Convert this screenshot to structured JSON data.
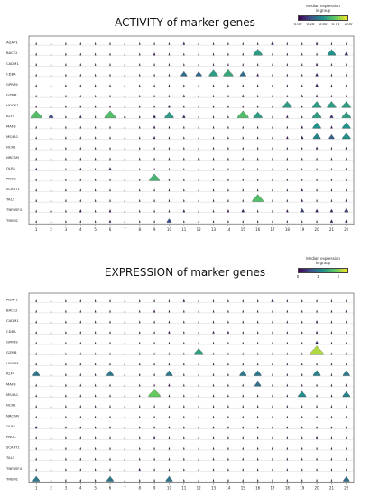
{
  "colors": {
    "viridis": [
      "#440154",
      "#3b528b",
      "#21918c",
      "#5ec962",
      "#fde725"
    ],
    "grid": "#bbbbbb",
    "frame": "#444444",
    "violin_edge": "#333333"
  },
  "chart_data": [
    {
      "type": "violin",
      "title": "ACTIVITY of marker genes",
      "colorbar": {
        "title_line1": "Median expression",
        "title_line2": "in group",
        "ticks": [
          "0.00",
          "0.25",
          "0.50",
          "0.75",
          "1.00"
        ],
        "range": [
          0,
          1
        ]
      },
      "genes": [
        "AGAP1",
        "BACE2",
        "CADM1",
        "CD8A",
        "GPR39",
        "GZMB",
        "HOOK1",
        "KLF4",
        "MAFB",
        "MS4A1",
        "NCR1",
        "NRCAM",
        "OLR1",
        "PNOC",
        "SCART1",
        "TAL1",
        "TNFRSF4",
        "TREM1"
      ],
      "groups": [
        "1",
        "2",
        "3",
        "4",
        "5",
        "6",
        "7",
        "8",
        "9",
        "10",
        "11",
        "12",
        "13",
        "14",
        "15",
        "16",
        "17",
        "18",
        "19",
        "20",
        "21",
        "22"
      ],
      "matrix": [
        [
          0,
          0,
          0,
          0,
          0,
          0,
          0,
          0,
          0,
          0,
          0.05,
          0,
          0,
          0,
          0,
          0,
          0.1,
          0,
          0,
          0.05,
          0,
          0
        ],
        [
          0,
          0,
          0,
          0,
          0,
          0,
          0,
          0,
          0.05,
          0,
          0,
          0,
          0,
          0,
          0,
          0.55,
          0,
          0,
          0,
          0,
          0.5,
          0.15
        ],
        [
          0,
          0,
          0,
          0,
          0,
          0,
          0,
          0,
          0,
          0,
          0,
          0,
          0,
          0,
          0,
          0,
          0,
          0,
          0,
          0.05,
          0,
          0
        ],
        [
          0,
          0,
          0,
          0,
          0,
          0,
          0,
          0,
          0,
          0,
          0.35,
          0.35,
          0.55,
          0.6,
          0.35,
          0.05,
          0,
          0,
          0,
          0.1,
          0,
          0
        ],
        [
          0,
          0,
          0,
          0,
          0,
          0,
          0,
          0,
          0,
          0,
          0,
          0,
          0,
          0,
          0,
          0,
          0,
          0,
          0,
          0.1,
          0,
          0
        ],
        [
          0,
          0,
          0,
          0,
          0,
          0,
          0,
          0,
          0,
          0,
          0.05,
          0,
          0,
          0,
          0.05,
          0,
          0,
          0,
          0.05,
          0.05,
          0,
          0
        ],
        [
          0,
          0,
          0,
          0,
          0,
          0,
          0,
          0,
          0,
          0.05,
          0,
          0,
          0,
          0,
          0,
          0,
          0,
          0.55,
          0,
          0.55,
          0.55,
          0.55
        ],
        [
          0.7,
          0.25,
          0,
          0.05,
          0,
          0.7,
          0.05,
          0,
          0.1,
          0.55,
          0.1,
          0,
          0,
          0,
          0.7,
          0.55,
          0,
          0.05,
          0,
          0.55,
          0.15,
          0.55
        ],
        [
          0,
          0,
          0,
          0,
          0,
          0,
          0,
          0,
          0.05,
          0,
          0,
          0,
          0,
          0,
          0,
          0,
          0,
          0,
          0.05,
          0.5,
          0.05,
          0.5
        ],
        [
          0,
          0,
          0,
          0,
          0,
          0,
          0,
          0,
          0.05,
          0,
          0,
          0,
          0,
          0,
          0,
          0,
          0,
          0.05,
          0.1,
          0.45,
          0.3,
          0.5
        ],
        [
          0,
          0,
          0,
          0,
          0,
          0,
          0,
          0,
          0,
          0,
          0,
          0,
          0,
          0,
          0,
          0,
          0,
          0,
          0,
          0.05,
          0,
          0.05
        ],
        [
          0,
          0,
          0,
          0,
          0,
          0,
          0,
          0,
          0,
          0,
          0,
          0.05,
          0,
          0,
          0,
          0,
          0,
          0,
          0,
          0,
          0,
          0
        ],
        [
          0.05,
          0,
          0,
          0.05,
          0,
          0.1,
          0,
          0,
          0,
          0,
          0,
          0,
          0,
          0,
          0,
          0,
          0,
          0,
          0,
          0,
          0,
          0.05
        ],
        [
          0,
          0,
          0,
          0,
          0,
          0,
          0,
          0,
          0.65,
          0,
          0,
          0,
          0,
          0,
          0,
          0,
          0,
          0,
          0,
          0,
          0,
          0
        ],
        [
          0,
          0,
          0,
          0,
          0,
          0,
          0,
          0,
          0,
          0,
          0,
          0,
          0,
          0,
          0,
          0,
          0,
          0,
          0.05,
          0,
          0,
          0
        ],
        [
          0,
          0,
          0,
          0,
          0,
          0,
          0,
          0,
          0,
          0,
          0,
          0,
          0,
          0,
          0,
          0.7,
          0,
          0,
          0.05,
          0,
          0,
          0.05
        ],
        [
          0,
          0.05,
          0,
          0.05,
          0,
          0.05,
          0,
          0,
          0,
          0,
          0.05,
          0,
          0,
          0.05,
          0.1,
          0,
          0,
          0.05,
          0.2,
          0.1,
          0.1,
          0.2
        ],
        [
          0,
          0,
          0,
          0,
          0,
          0.05,
          0,
          0,
          0,
          0.25,
          0,
          0,
          0,
          0,
          0,
          0,
          0,
          0,
          0,
          0,
          0.1,
          0.1
        ]
      ]
    },
    {
      "type": "violin",
      "title": "EXPRESSION of marker genes",
      "colorbar": {
        "title_line1": "Median expression",
        "title_line2": "in group",
        "ticks": [
          "0",
          "1",
          "2"
        ],
        "range": [
          0,
          2.5
        ]
      },
      "genes": [
        "AGAP1",
        "BACE2",
        "CADM1",
        "CD8A",
        "GPR39",
        "GZMB",
        "HOOK1",
        "KLF4",
        "MAFB",
        "MS4A1",
        "NCR1",
        "NRCAM",
        "OLR1",
        "PNOC",
        "SCART1",
        "TAL1",
        "TNFRSF4",
        "TREM1"
      ],
      "groups": [
        "1",
        "2",
        "3",
        "4",
        "5",
        "6",
        "7",
        "8",
        "9",
        "10",
        "11",
        "12",
        "13",
        "14",
        "15",
        "16",
        "17",
        "18",
        "19",
        "20",
        "21",
        "22"
      ],
      "matrix": [
        [
          0,
          0,
          0,
          0,
          0,
          0,
          0,
          0,
          0,
          0,
          0.1,
          0,
          0,
          0,
          0,
          0,
          0.2,
          0,
          0,
          0,
          0,
          0
        ],
        [
          0,
          0,
          0,
          0,
          0,
          0,
          0,
          0,
          0.1,
          0,
          0,
          0,
          0,
          0,
          0,
          0,
          0,
          0,
          0,
          0,
          0,
          0.1
        ],
        [
          0,
          0,
          0,
          0,
          0,
          0,
          0,
          0,
          0,
          0,
          0,
          0,
          0,
          0,
          0,
          0,
          0,
          0,
          0,
          0.1,
          0,
          0
        ],
        [
          0,
          0,
          0,
          0,
          0,
          0,
          0,
          0,
          0,
          0.1,
          0,
          0,
          0.1,
          0.1,
          0,
          0,
          0,
          0,
          0,
          0.1,
          0,
          0
        ],
        [
          0,
          0,
          0,
          0,
          0,
          0,
          0,
          0,
          0,
          0,
          0,
          0,
          0,
          0,
          0,
          0,
          0,
          0,
          0,
          0.3,
          0,
          0
        ],
        [
          0,
          0,
          0,
          0,
          0,
          0,
          0,
          0,
          0,
          0,
          0,
          1.4,
          0,
          0,
          0,
          0,
          0,
          0,
          0,
          2.2,
          0,
          0
        ],
        [
          0,
          0,
          0,
          0,
          0,
          0,
          0,
          0,
          0,
          0,
          0,
          0,
          0,
          0,
          0,
          0,
          0,
          0,
          0,
          0,
          0,
          0
        ],
        [
          1.0,
          0,
          0,
          0,
          0,
          1.0,
          0,
          0,
          0,
          1.0,
          0,
          0,
          0,
          0,
          1.0,
          1.0,
          0,
          0,
          0,
          1.1,
          0,
          1.0
        ],
        [
          0,
          0,
          0,
          0,
          0,
          0,
          0,
          0,
          0,
          0.1,
          0,
          0,
          0,
          0,
          0,
          0.9,
          0,
          0,
          0,
          0,
          0,
          0.1
        ],
        [
          0,
          0,
          0,
          0,
          0,
          0,
          0,
          0,
          1.9,
          0,
          0,
          0,
          0,
          0,
          0,
          0,
          0,
          0,
          1.2,
          0,
          0,
          1.1
        ],
        [
          0,
          0,
          0,
          0,
          0,
          0,
          0,
          0,
          0,
          0,
          0,
          0,
          0,
          0,
          0,
          0,
          0,
          0,
          0,
          0,
          0,
          0
        ],
        [
          0,
          0,
          0,
          0,
          0,
          0,
          0,
          0,
          0,
          0,
          0,
          0,
          0,
          0,
          0,
          0,
          0,
          0,
          0,
          0,
          0,
          0
        ],
        [
          0.1,
          0,
          0,
          0,
          0,
          0,
          0,
          0,
          0,
          0,
          0,
          0,
          0,
          0,
          0,
          0,
          0,
          0,
          0,
          0,
          0,
          0
        ],
        [
          0,
          0,
          0,
          0,
          0,
          0,
          0,
          0,
          0.1,
          0,
          0,
          0,
          0,
          0,
          0,
          0,
          0,
          0,
          0,
          0.1,
          0,
          0
        ],
        [
          0,
          0,
          0,
          0,
          0,
          0,
          0,
          0,
          0,
          0,
          0,
          0,
          0,
          0,
          0,
          0,
          0.1,
          0,
          0,
          0,
          0,
          0
        ],
        [
          0,
          0,
          0,
          0,
          0,
          0,
          0,
          0,
          0,
          0,
          0,
          0,
          0,
          0,
          0,
          0,
          0,
          0,
          0,
          0,
          0,
          0
        ],
        [
          0,
          0,
          0,
          0,
          0,
          0,
          0,
          0.1,
          0,
          0,
          0,
          0,
          0,
          0,
          0,
          0,
          0,
          0,
          0,
          0,
          0,
          0
        ],
        [
          1.0,
          0,
          0,
          0,
          0,
          1.0,
          0,
          0,
          0,
          1.0,
          0,
          0,
          0,
          0,
          0,
          0,
          0,
          0,
          0,
          0,
          0,
          0.9
        ]
      ]
    }
  ]
}
